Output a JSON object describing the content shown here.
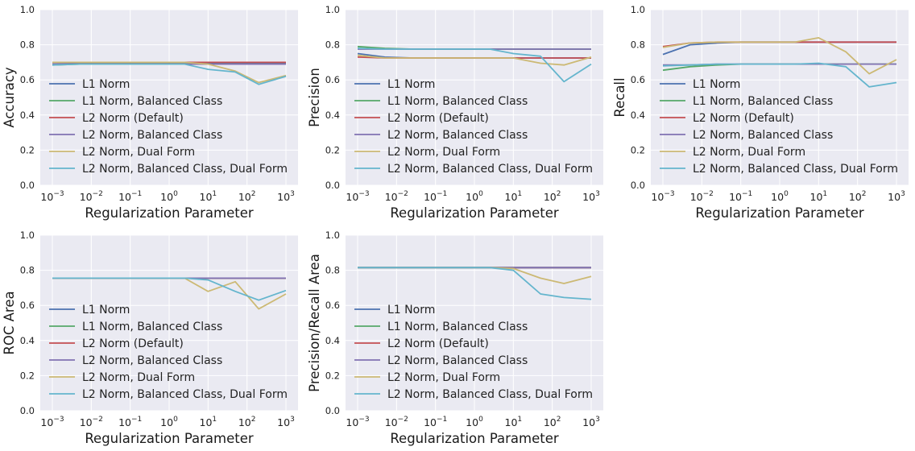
{
  "colors": {
    "axes_bg": "#EAEAF2",
    "grid": "#FFFFFF",
    "series": [
      "#4C72B0",
      "#55A868",
      "#C44E52",
      "#8172B2",
      "#CCB974",
      "#64B5CD"
    ]
  },
  "chart_data": [
    {
      "type": "line",
      "xlabel": "Regularization Parameter",
      "ylabel": "Accuracy",
      "xscale": "log",
      "xlim": [
        0.001,
        1000
      ],
      "ylim": [
        0.0,
        1.0
      ],
      "x_ticks": [
        "-3",
        "-2",
        "-1",
        "0",
        "1",
        "2",
        "3"
      ],
      "y_ticks": [
        "0.0",
        "0.2",
        "0.4",
        "0.6",
        "0.8",
        "1.0"
      ],
      "grid": true,
      "legend_position": "lower-left",
      "x": [
        0.001,
        0.005,
        0.025,
        0.1,
        0.5,
        2.5,
        10,
        50,
        200,
        1000
      ],
      "series": [
        {
          "name": "L1 Norm",
          "values": [
            0.69,
            0.695,
            0.695,
            0.695,
            0.695,
            0.695,
            0.695,
            0.695,
            0.695,
            0.695
          ]
        },
        {
          "name": "L1 Norm, Balanced Class",
          "values": [
            0.685,
            0.69,
            0.69,
            0.69,
            0.69,
            0.69,
            0.69,
            0.69,
            0.69,
            0.69
          ]
        },
        {
          "name": "L2 Norm (Default)",
          "values": [
            0.7,
            0.7,
            0.7,
            0.7,
            0.7,
            0.7,
            0.7,
            0.7,
            0.7,
            0.7
          ]
        },
        {
          "name": "L2 Norm, Balanced Class",
          "values": [
            0.69,
            0.69,
            0.69,
            0.69,
            0.69,
            0.69,
            0.69,
            0.69,
            0.69,
            0.69
          ]
        },
        {
          "name": "L2 Norm, Dual Form",
          "values": [
            0.7,
            0.7,
            0.7,
            0.7,
            0.7,
            0.7,
            0.69,
            0.65,
            0.585,
            0.625
          ]
        },
        {
          "name": "L2 Norm, Balanced Class, Dual Form",
          "values": [
            0.685,
            0.69,
            0.69,
            0.69,
            0.69,
            0.69,
            0.66,
            0.645,
            0.575,
            0.62
          ]
        }
      ]
    },
    {
      "type": "line",
      "xlabel": "Regularization Parameter",
      "ylabel": "Precision",
      "xscale": "log",
      "xlim": [
        0.001,
        1000
      ],
      "ylim": [
        0.0,
        1.0
      ],
      "x_ticks": [
        "-3",
        "-2",
        "-1",
        "0",
        "1",
        "2",
        "3"
      ],
      "y_ticks": [
        "0.0",
        "0.2",
        "0.4",
        "0.6",
        "0.8",
        "1.0"
      ],
      "grid": true,
      "legend_position": "lower-left",
      "x": [
        0.001,
        0.005,
        0.025,
        0.1,
        0.5,
        2.5,
        10,
        50,
        200,
        1000
      ],
      "series": [
        {
          "name": "L1 Norm",
          "values": [
            0.75,
            0.73,
            0.725,
            0.725,
            0.725,
            0.725,
            0.725,
            0.725,
            0.725,
            0.725
          ]
        },
        {
          "name": "L1 Norm, Balanced Class",
          "values": [
            0.79,
            0.78,
            0.775,
            0.775,
            0.775,
            0.775,
            0.775,
            0.775,
            0.775,
            0.775
          ]
        },
        {
          "name": "L2 Norm (Default)",
          "values": [
            0.73,
            0.725,
            0.725,
            0.725,
            0.725,
            0.725,
            0.725,
            0.725,
            0.725,
            0.725
          ]
        },
        {
          "name": "L2 Norm, Balanced Class",
          "values": [
            0.775,
            0.775,
            0.775,
            0.775,
            0.775,
            0.775,
            0.775,
            0.775,
            0.775,
            0.775
          ]
        },
        {
          "name": "L2 Norm, Dual Form",
          "values": [
            0.74,
            0.725,
            0.725,
            0.725,
            0.725,
            0.725,
            0.725,
            0.695,
            0.685,
            0.73
          ]
        },
        {
          "name": "L2 Norm, Balanced Class, Dual Form",
          "values": [
            0.78,
            0.775,
            0.775,
            0.775,
            0.775,
            0.775,
            0.75,
            0.735,
            0.59,
            0.69
          ]
        }
      ]
    },
    {
      "type": "line",
      "xlabel": "Regularization Parameter",
      "ylabel": "Recall",
      "xscale": "log",
      "xlim": [
        0.001,
        1000
      ],
      "ylim": [
        0.0,
        1.0
      ],
      "x_ticks": [
        "-3",
        "-2",
        "-1",
        "0",
        "1",
        "2",
        "3"
      ],
      "y_ticks": [
        "0.0",
        "0.2",
        "0.4",
        "0.6",
        "0.8",
        "1.0"
      ],
      "grid": true,
      "legend_position": "lower-left",
      "x": [
        0.001,
        0.005,
        0.025,
        0.1,
        0.5,
        2.5,
        10,
        50,
        200,
        1000
      ],
      "series": [
        {
          "name": "L1 Norm",
          "values": [
            0.745,
            0.8,
            0.81,
            0.815,
            0.815,
            0.815,
            0.815,
            0.815,
            0.815,
            0.815
          ]
        },
        {
          "name": "L1 Norm, Balanced Class",
          "values": [
            0.655,
            0.675,
            0.685,
            0.69,
            0.69,
            0.69,
            0.69,
            0.69,
            0.69,
            0.69
          ]
        },
        {
          "name": "L2 Norm (Default)",
          "values": [
            0.79,
            0.81,
            0.815,
            0.815,
            0.815,
            0.815,
            0.815,
            0.815,
            0.815,
            0.815
          ]
        },
        {
          "name": "L2 Norm, Balanced Class",
          "values": [
            0.685,
            0.685,
            0.69,
            0.69,
            0.69,
            0.69,
            0.69,
            0.69,
            0.69,
            0.69
          ]
        },
        {
          "name": "L2 Norm, Dual Form",
          "values": [
            0.785,
            0.81,
            0.815,
            0.815,
            0.815,
            0.815,
            0.84,
            0.76,
            0.635,
            0.715
          ]
        },
        {
          "name": "L2 Norm, Balanced Class, Dual Form",
          "values": [
            0.68,
            0.685,
            0.69,
            0.69,
            0.69,
            0.69,
            0.695,
            0.675,
            0.56,
            0.585
          ]
        }
      ]
    },
    {
      "type": "line",
      "xlabel": "Regularization Parameter",
      "ylabel": "ROC Area",
      "xscale": "log",
      "xlim": [
        0.001,
        1000
      ],
      "ylim": [
        0.0,
        1.0
      ],
      "x_ticks": [
        "-3",
        "-2",
        "-1",
        "0",
        "1",
        "2",
        "3"
      ],
      "y_ticks": [
        "0.0",
        "0.2",
        "0.4",
        "0.6",
        "0.8",
        "1.0"
      ],
      "grid": true,
      "legend_position": "lower-left",
      "x": [
        0.001,
        0.005,
        0.025,
        0.1,
        0.5,
        2.5,
        10,
        50,
        200,
        1000
      ],
      "series": [
        {
          "name": "L1 Norm",
          "values": [
            0.755,
            0.755,
            0.755,
            0.755,
            0.755,
            0.755,
            0.755,
            0.755,
            0.755,
            0.755
          ]
        },
        {
          "name": "L1 Norm, Balanced Class",
          "values": [
            0.755,
            0.755,
            0.755,
            0.755,
            0.755,
            0.755,
            0.755,
            0.755,
            0.755,
            0.755
          ]
        },
        {
          "name": "L2 Norm (Default)",
          "values": [
            0.755,
            0.755,
            0.755,
            0.755,
            0.755,
            0.755,
            0.755,
            0.755,
            0.755,
            0.755
          ]
        },
        {
          "name": "L2 Norm, Balanced Class",
          "values": [
            0.755,
            0.755,
            0.755,
            0.755,
            0.755,
            0.755,
            0.755,
            0.755,
            0.755,
            0.755
          ]
        },
        {
          "name": "L2 Norm, Dual Form",
          "values": [
            0.755,
            0.755,
            0.755,
            0.755,
            0.755,
            0.755,
            0.68,
            0.735,
            0.58,
            0.665
          ]
        },
        {
          "name": "L2 Norm, Balanced Class, Dual Form",
          "values": [
            0.755,
            0.755,
            0.755,
            0.755,
            0.755,
            0.755,
            0.745,
            0.68,
            0.63,
            0.685
          ]
        }
      ]
    },
    {
      "type": "line",
      "xlabel": "Regularization Parameter",
      "ylabel": "Precision/Recall Area",
      "xscale": "log",
      "xlim": [
        0.001,
        1000
      ],
      "ylim": [
        0.0,
        1.0
      ],
      "x_ticks": [
        "-3",
        "-2",
        "-1",
        "0",
        "1",
        "2",
        "3"
      ],
      "y_ticks": [
        "0.0",
        "0.2",
        "0.4",
        "0.6",
        "0.8",
        "1.0"
      ],
      "grid": true,
      "legend_position": "lower-left",
      "x": [
        0.001,
        0.005,
        0.025,
        0.1,
        0.5,
        2.5,
        10,
        50,
        200,
        1000
      ],
      "series": [
        {
          "name": "L1 Norm",
          "values": [
            0.815,
            0.815,
            0.815,
            0.815,
            0.815,
            0.815,
            0.815,
            0.815,
            0.815,
            0.815
          ]
        },
        {
          "name": "L1 Norm, Balanced Class",
          "values": [
            0.815,
            0.815,
            0.815,
            0.815,
            0.815,
            0.815,
            0.815,
            0.815,
            0.815,
            0.815
          ]
        },
        {
          "name": "L2 Norm (Default)",
          "values": [
            0.815,
            0.815,
            0.815,
            0.815,
            0.815,
            0.815,
            0.815,
            0.815,
            0.815,
            0.815
          ]
        },
        {
          "name": "L2 Norm, Balanced Class",
          "values": [
            0.815,
            0.815,
            0.815,
            0.815,
            0.815,
            0.815,
            0.815,
            0.815,
            0.815,
            0.815
          ]
        },
        {
          "name": "L2 Norm, Dual Form",
          "values": [
            0.815,
            0.815,
            0.815,
            0.815,
            0.815,
            0.815,
            0.81,
            0.755,
            0.725,
            0.765
          ]
        },
        {
          "name": "L2 Norm, Balanced Class, Dual Form",
          "values": [
            0.815,
            0.815,
            0.815,
            0.815,
            0.815,
            0.815,
            0.8,
            0.665,
            0.645,
            0.635
          ]
        }
      ]
    }
  ]
}
